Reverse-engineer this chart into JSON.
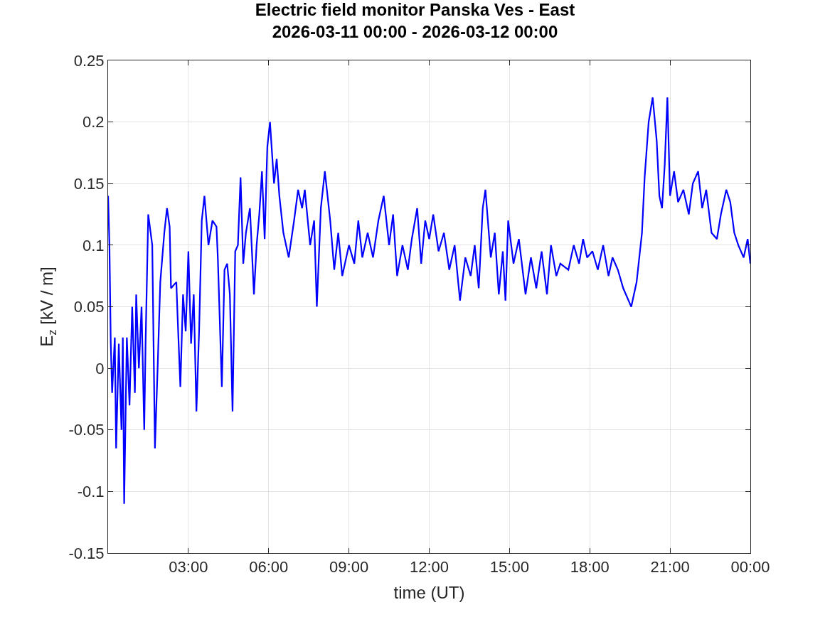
{
  "chart_data": {
    "type": "line",
    "title": "Electric field monitor Panska Ves - East\n2026-03-11 00:00 - 2026-03-12 00:00",
    "xlabel": "time (UT)",
    "ylabel": "E$_{z}$ [kV / m]",
    "x": [
      0,
      0.05,
      0.1,
      0.15,
      0.25,
      0.3,
      0.4,
      0.5,
      0.55,
      0.6,
      0.7,
      0.8,
      0.9,
      1.0,
      1.05,
      1.15,
      1.25,
      1.35,
      1.4,
      1.5,
      1.65,
      1.75,
      1.85,
      1.95,
      2.1,
      2.2,
      2.3,
      2.35,
      2.55,
      2.6,
      2.7,
      2.8,
      2.9,
      3.0,
      3.1,
      3.2,
      3.3,
      3.4,
      3.5,
      3.6,
      3.75,
      3.9,
      4.05,
      4.1,
      4.25,
      4.35,
      4.45,
      4.55,
      4.65,
      4.75,
      4.85,
      4.95,
      5.05,
      5.15,
      5.3,
      5.45,
      5.55,
      5.65,
      5.75,
      5.85,
      5.95,
      6.05,
      6.2,
      6.3,
      6.4,
      6.55,
      6.75,
      6.95,
      7.1,
      7.25,
      7.35,
      7.55,
      7.7,
      7.8,
      7.95,
      8.1,
      8.3,
      8.45,
      8.6,
      8.75,
      9.0,
      9.2,
      9.35,
      9.5,
      9.7,
      9.9,
      10.1,
      10.3,
      10.5,
      10.65,
      10.8,
      11.0,
      11.2,
      11.35,
      11.55,
      11.7,
      11.85,
      12.0,
      12.15,
      12.35,
      12.55,
      12.75,
      12.95,
      13.15,
      13.35,
      13.55,
      13.7,
      13.85,
      14.0,
      14.1,
      14.3,
      14.45,
      14.6,
      14.75,
      14.85,
      14.95,
      15.15,
      15.35,
      15.6,
      15.8,
      16.0,
      16.2,
      16.4,
      16.55,
      16.75,
      16.9,
      17.2,
      17.4,
      17.6,
      17.75,
      17.9,
      18.1,
      18.3,
      18.5,
      18.7,
      18.85,
      19.05,
      19.25,
      19.45,
      19.55,
      19.75,
      19.95,
      20.05,
      20.2,
      20.35,
      20.5,
      20.6,
      20.7,
      20.8,
      20.9,
      21.0,
      21.15,
      21.3,
      21.5,
      21.7,
      21.85,
      22.05,
      22.2,
      22.35,
      22.55,
      22.75,
      22.9,
      23.1,
      23.25,
      23.4,
      23.55,
      23.75,
      23.9,
      24.0
    ],
    "series": [
      {
        "color": "#0000ff",
        "values": [
          0.14,
          0.1,
          0.02,
          -0.02,
          0.025,
          -0.065,
          0.02,
          -0.05,
          0.025,
          -0.11,
          0.025,
          -0.03,
          0.05,
          -0.02,
          0.06,
          0.0,
          0.05,
          -0.05,
          0.02,
          0.125,
          0.1,
          -0.065,
          0.0,
          0.07,
          0.11,
          0.13,
          0.115,
          0.065,
          0.07,
          0.04,
          -0.015,
          0.06,
          0.03,
          0.095,
          0.02,
          0.06,
          -0.035,
          0.03,
          0.12,
          0.14,
          0.1,
          0.12,
          0.115,
          0.09,
          -0.015,
          0.08,
          0.085,
          0.06,
          -0.035,
          0.095,
          0.1,
          0.155,
          0.085,
          0.11,
          0.13,
          0.06,
          0.1,
          0.125,
          0.16,
          0.105,
          0.18,
          0.2,
          0.15,
          0.17,
          0.14,
          0.11,
          0.09,
          0.12,
          0.145,
          0.13,
          0.145,
          0.1,
          0.12,
          0.05,
          0.13,
          0.16,
          0.12,
          0.08,
          0.11,
          0.075,
          0.1,
          0.085,
          0.12,
          0.09,
          0.11,
          0.09,
          0.12,
          0.14,
          0.1,
          0.125,
          0.075,
          0.1,
          0.08,
          0.105,
          0.13,
          0.085,
          0.12,
          0.105,
          0.125,
          0.095,
          0.11,
          0.08,
          0.1,
          0.055,
          0.09,
          0.075,
          0.1,
          0.065,
          0.13,
          0.145,
          0.09,
          0.11,
          0.06,
          0.095,
          0.055,
          0.12,
          0.085,
          0.105,
          0.06,
          0.09,
          0.065,
          0.095,
          0.06,
          0.1,
          0.075,
          0.085,
          0.08,
          0.1,
          0.085,
          0.105,
          0.09,
          0.095,
          0.08,
          0.1,
          0.075,
          0.09,
          0.08,
          0.065,
          0.055,
          0.05,
          0.07,
          0.11,
          0.155,
          0.2,
          0.22,
          0.185,
          0.14,
          0.13,
          0.165,
          0.22,
          0.14,
          0.16,
          0.135,
          0.145,
          0.125,
          0.15,
          0.16,
          0.13,
          0.145,
          0.11,
          0.105,
          0.125,
          0.145,
          0.135,
          0.11,
          0.1,
          0.09,
          0.105,
          0.085
        ]
      }
    ],
    "xlim": [
      0,
      24
    ],
    "xticks": [
      {
        "value": 3,
        "label": "03:00"
      },
      {
        "value": 6,
        "label": "06:00"
      },
      {
        "value": 9,
        "label": "09:00"
      },
      {
        "value": 12,
        "label": "12:00"
      },
      {
        "value": 15,
        "label": "15:00"
      },
      {
        "value": 18,
        "label": "18:00"
      },
      {
        "value": 21,
        "label": "21:00"
      },
      {
        "value": 24,
        "label": "00:00"
      }
    ],
    "ylim": [
      -0.15,
      0.25
    ],
    "yticks": [
      -0.15,
      -0.1,
      -0.05,
      0,
      0.05,
      0.1,
      0.15,
      0.2,
      0.25
    ],
    "grid": true,
    "marker": "none",
    "line_style": "solid"
  }
}
